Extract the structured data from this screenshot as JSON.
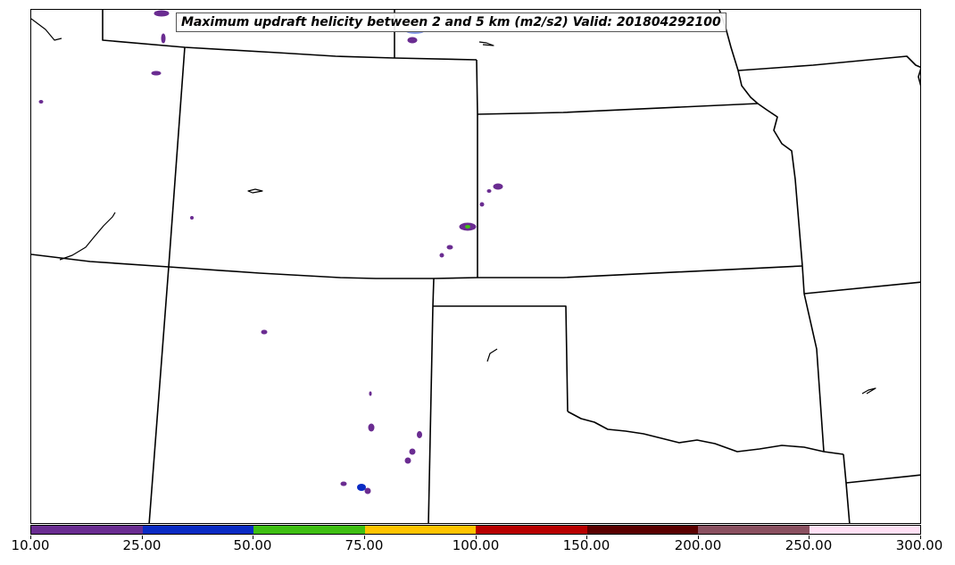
{
  "title": "Maximum updraft helicity between 2 and 5 km (m2/s2) Valid: 201804292100",
  "colorbar": {
    "labels": [
      "10.00",
      "25.00",
      "50.00",
      "75.00",
      "100.00",
      "150.00",
      "200.00",
      "250.00",
      "300.00"
    ],
    "colors": [
      "#6a2c91",
      "#0a2bc4",
      "#3fbf12",
      "#ffc400",
      "#b80000",
      "#5a0000",
      "#8a5060",
      "#ffe0f5"
    ]
  }
}
